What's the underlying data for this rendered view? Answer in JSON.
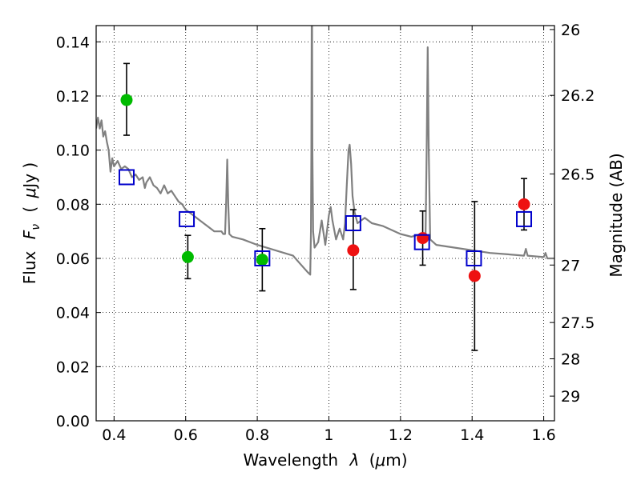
{
  "chart_data": {
    "type": "scatter",
    "title": "",
    "xlabel": "Wavelength",
    "xlabel_symbol": "λ",
    "xlabel_unit_open": "(",
    "xlabel_unit_mu": "μ",
    "xlabel_unit_rest": "m)",
    "ylabel": "Flux",
    "ylabel_symbol": "F",
    "ylabel_symbol_sub": "ν",
    "ylabel_unit_open": "(",
    "ylabel_unit_mu": "μ",
    "ylabel_unit_rest": "Jy )",
    "y2label": "Magnitude (AB)",
    "xlim": [
      0.35,
      1.63
    ],
    "ylim": [
      0.0,
      0.146
    ],
    "grid": true,
    "xticks": [
      {
        "value": 0.4,
        "label": "0.4"
      },
      {
        "value": 0.6,
        "label": "0.6"
      },
      {
        "value": 0.8,
        "label": "0.8"
      },
      {
        "value": 1.0,
        "label": "1"
      },
      {
        "value": 1.2,
        "label": "1.2"
      },
      {
        "value": 1.4,
        "label": "1.4"
      },
      {
        "value": 1.6,
        "label": "1.6"
      }
    ],
    "yticks": [
      {
        "value": 0.0,
        "label": "0.00"
      },
      {
        "value": 0.02,
        "label": "0.02"
      },
      {
        "value": 0.04,
        "label": "0.04"
      },
      {
        "value": 0.06,
        "label": "0.06"
      },
      {
        "value": 0.08,
        "label": "0.08"
      },
      {
        "value": 0.1,
        "label": "0.10"
      },
      {
        "value": 0.12,
        "label": "0.12"
      },
      {
        "value": 0.14,
        "label": "0.14"
      }
    ],
    "y2ticks": [
      {
        "value": 26,
        "label": "26"
      },
      {
        "value": 26.2,
        "label": "26.2"
      },
      {
        "value": 26.5,
        "label": "26.5"
      },
      {
        "value": 27,
        "label": "27"
      },
      {
        "value": 27.5,
        "label": "27.5"
      },
      {
        "value": 28,
        "label": "28"
      },
      {
        "value": 29,
        "label": "29"
      }
    ],
    "series": [
      {
        "marker": "circle",
        "color": "#00bb00",
        "points": [
          {
            "x": 0.435,
            "y": 0.1185,
            "err_lo": 0.013,
            "err_hi": 0.0135
          },
          {
            "x": 0.606,
            "y": 0.0605,
            "err_lo": 0.008,
            "err_hi": 0.008
          },
          {
            "x": 0.814,
            "y": 0.0595,
            "err_lo": 0.0115,
            "err_hi": 0.0115
          }
        ]
      },
      {
        "marker": "circle",
        "color": "#ee1111",
        "points": [
          {
            "x": 1.068,
            "y": 0.063,
            "err_lo": 0.0145,
            "err_hi": 0.015
          },
          {
            "x": 1.262,
            "y": 0.0675,
            "err_lo": 0.01,
            "err_hi": 0.01
          },
          {
            "x": 1.407,
            "y": 0.0535,
            "err_lo": 0.0275,
            "err_hi": 0.0275
          },
          {
            "x": 1.545,
            "y": 0.08,
            "err_lo": 0.0095,
            "err_hi": 0.0095
          }
        ]
      },
      {
        "marker": "square",
        "color": "#0000cc",
        "points": [
          {
            "x": 0.435,
            "y": 0.09
          },
          {
            "x": 0.603,
            "y": 0.0745
          },
          {
            "x": 0.814,
            "y": 0.06
          },
          {
            "x": 1.068,
            "y": 0.073
          },
          {
            "x": 1.26,
            "y": 0.066
          },
          {
            "x": 1.405,
            "y": 0.06
          },
          {
            "x": 1.545,
            "y": 0.0745
          }
        ]
      }
    ],
    "spectrum": {
      "color": "#808080",
      "points": [
        [
          0.35,
          0.108
        ],
        [
          0.355,
          0.112
        ],
        [
          0.36,
          0.108
        ],
        [
          0.365,
          0.111
        ],
        [
          0.37,
          0.105
        ],
        [
          0.375,
          0.107
        ],
        [
          0.38,
          0.103
        ],
        [
          0.385,
          0.1
        ],
        [
          0.39,
          0.092
        ],
        [
          0.395,
          0.097
        ],
        [
          0.4,
          0.094
        ],
        [
          0.41,
          0.096
        ],
        [
          0.42,
          0.093
        ],
        [
          0.43,
          0.094
        ],
        [
          0.44,
          0.093
        ],
        [
          0.45,
          0.09
        ],
        [
          0.46,
          0.091
        ],
        [
          0.47,
          0.089
        ],
        [
          0.48,
          0.09
        ],
        [
          0.486,
          0.086
        ],
        [
          0.49,
          0.088
        ],
        [
          0.5,
          0.09
        ],
        [
          0.51,
          0.087
        ],
        [
          0.52,
          0.086
        ],
        [
          0.53,
          0.084
        ],
        [
          0.54,
          0.087
        ],
        [
          0.55,
          0.084
        ],
        [
          0.56,
          0.085
        ],
        [
          0.57,
          0.083
        ],
        [
          0.58,
          0.081
        ],
        [
          0.59,
          0.08
        ],
        [
          0.6,
          0.078
        ],
        [
          0.62,
          0.076
        ],
        [
          0.64,
          0.074
        ],
        [
          0.66,
          0.072
        ],
        [
          0.68,
          0.07
        ],
        [
          0.7,
          0.07
        ],
        [
          0.705,
          0.069
        ],
        [
          0.71,
          0.069
        ],
        [
          0.713,
          0.08
        ],
        [
          0.716,
          0.0965
        ],
        [
          0.719,
          0.08
        ],
        [
          0.722,
          0.069
        ],
        [
          0.73,
          0.068
        ],
        [
          0.76,
          0.067
        ],
        [
          0.8,
          0.065
        ],
        [
          0.85,
          0.063
        ],
        [
          0.9,
          0.061
        ],
        [
          0.92,
          0.058
        ],
        [
          0.94,
          0.055
        ],
        [
          0.948,
          0.054
        ],
        [
          0.95,
          0.07
        ],
        [
          0.951,
          0.1
        ],
        [
          0.952,
          0.146
        ],
        [
          0.953,
          0.146
        ],
        [
          0.954,
          0.1
        ],
        [
          0.956,
          0.07
        ],
        [
          0.96,
          0.064
        ],
        [
          0.97,
          0.066
        ],
        [
          0.98,
          0.074
        ],
        [
          0.99,
          0.065
        ],
        [
          1.0,
          0.076
        ],
        [
          1.005,
          0.079
        ],
        [
          1.01,
          0.074
        ],
        [
          1.02,
          0.067
        ],
        [
          1.03,
          0.071
        ],
        [
          1.04,
          0.067
        ],
        [
          1.045,
          0.073
        ],
        [
          1.05,
          0.087
        ],
        [
          1.055,
          0.1
        ],
        [
          1.058,
          0.102
        ],
        [
          1.062,
          0.095
        ],
        [
          1.066,
          0.083
        ],
        [
          1.072,
          0.077
        ],
        [
          1.08,
          0.073
        ],
        [
          1.1,
          0.075
        ],
        [
          1.12,
          0.073
        ],
        [
          1.15,
          0.072
        ],
        [
          1.2,
          0.069
        ],
        [
          1.23,
          0.068
        ],
        [
          1.26,
          0.069
        ],
        [
          1.27,
          0.068
        ],
        [
          1.273,
          0.1
        ],
        [
          1.276,
          0.138
        ],
        [
          1.279,
          0.1
        ],
        [
          1.283,
          0.067
        ],
        [
          1.3,
          0.065
        ],
        [
          1.35,
          0.064
        ],
        [
          1.4,
          0.063
        ],
        [
          1.45,
          0.062
        ],
        [
          1.5,
          0.0615
        ],
        [
          1.545,
          0.061
        ],
        [
          1.55,
          0.0635
        ],
        [
          1.555,
          0.061
        ],
        [
          1.6,
          0.0605
        ],
        [
          1.605,
          0.062
        ],
        [
          1.61,
          0.06
        ],
        [
          1.63,
          0.06
        ]
      ]
    }
  }
}
